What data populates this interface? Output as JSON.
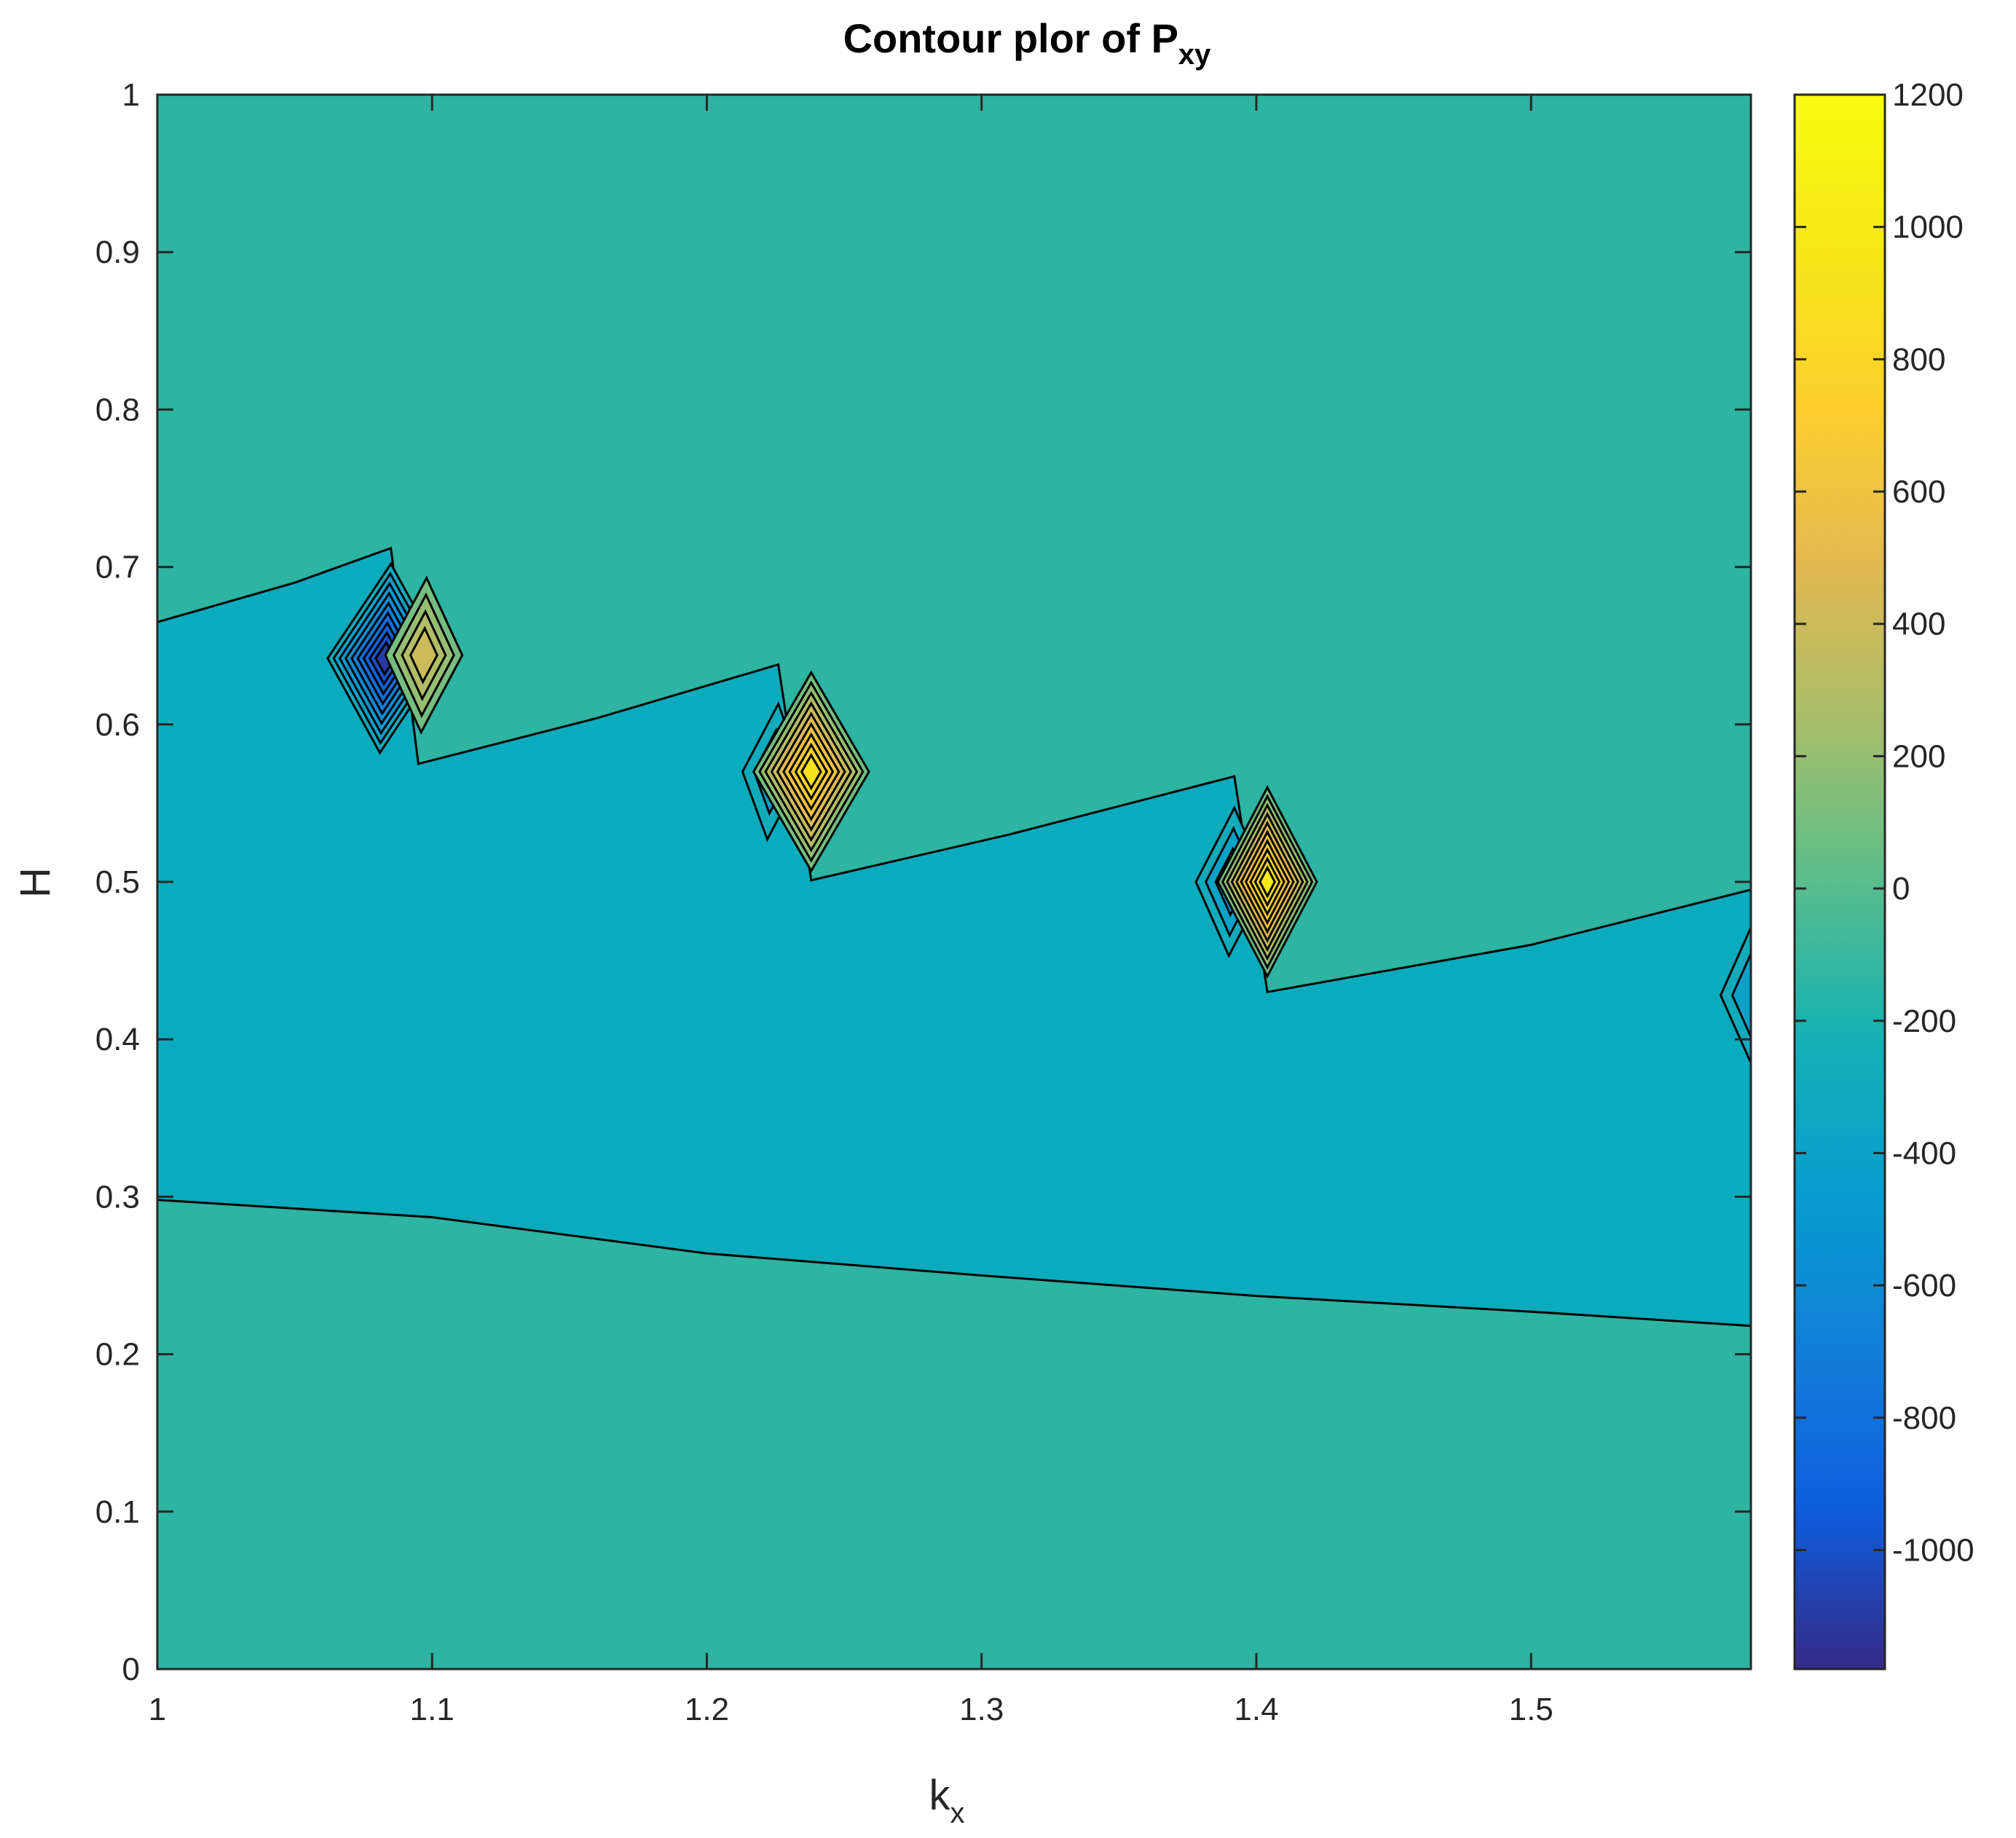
{
  "chart_data": {
    "type": "contour",
    "title": "Contour plor of P",
    "title_subscript": "xy",
    "xlabel": "k",
    "xlabel_subscript": "x",
    "ylabel": "H",
    "xlim": [
      1,
      1.58
    ],
    "ylim": [
      0,
      1
    ],
    "x_ticks": [
      1,
      1.1,
      1.2,
      1.3,
      1.4,
      1.5
    ],
    "x_tick_labels": [
      "1",
      "1.1",
      "1.2",
      "1.3",
      "1.4",
      "1.5"
    ],
    "y_ticks": [
      0,
      0.1,
      0.2,
      0.3,
      0.4,
      0.5,
      0.6,
      0.7,
      0.8,
      0.9,
      1
    ],
    "y_tick_labels": [
      "0",
      "0.1",
      "0.2",
      "0.3",
      "0.4",
      "0.5",
      "0.6",
      "0.7",
      "0.8",
      "0.9",
      "1"
    ],
    "colorbar": {
      "colormap": "parula",
      "clim": [
        -1180,
        1200
      ],
      "ticks": [
        -1000,
        -800,
        -600,
        -400,
        -200,
        0,
        200,
        400,
        600,
        800,
        1000,
        1200
      ],
      "tick_labels": [
        "-1000",
        "-800",
        "-600",
        "-400",
        "-200",
        "0",
        "200",
        "400",
        "600",
        "800",
        "1000",
        "1200"
      ]
    },
    "grid": false,
    "regions": [
      {
        "name": "background",
        "value": 0,
        "color": "#2db4a2"
      },
      {
        "name": "band",
        "value": -200,
        "color": "#0aabbd"
      }
    ],
    "band_boundary": {
      "upper": [
        [
          1.0,
          0.665
        ],
        [
          1.05,
          0.69
        ],
        [
          1.085,
          0.712
        ],
        [
          1.095,
          0.575
        ],
        [
          1.16,
          0.604
        ],
        [
          1.226,
          0.638
        ],
        [
          1.238,
          0.501
        ],
        [
          1.31,
          0.53
        ],
        [
          1.392,
          0.567
        ],
        [
          1.404,
          0.43
        ],
        [
          1.5,
          0.46
        ],
        [
          1.58,
          0.495
        ]
      ],
      "lower": [
        [
          1.0,
          0.298
        ],
        [
          1.1,
          0.287
        ],
        [
          1.2,
          0.264
        ],
        [
          1.3,
          0.25
        ],
        [
          1.4,
          0.237
        ],
        [
          1.5,
          0.227
        ],
        [
          1.58,
          0.218
        ]
      ]
    },
    "extrema": [
      {
        "kx": 1.083,
        "H": 0.642,
        "value": -1100,
        "hw": 0.021,
        "hh": 0.06,
        "skew": 0.002
      },
      {
        "kx": 1.097,
        "H": 0.644,
        "value": 400,
        "hw": 0.014,
        "hh": 0.049,
        "skew": 0.001
      },
      {
        "kx": 1.224,
        "H": 0.57,
        "value": -400,
        "hw": 0.011,
        "hh": 0.043,
        "skew": 0.002
      },
      {
        "kx": 1.238,
        "H": 0.57,
        "value": 900,
        "hw": 0.021,
        "hh": 0.063,
        "skew": 0.0
      },
      {
        "kx": 1.391,
        "H": 0.5,
        "value": -500,
        "hw": 0.013,
        "hh": 0.047,
        "skew": 0.001
      },
      {
        "kx": 1.404,
        "H": 0.5,
        "value": 1000,
        "hw": 0.018,
        "hh": 0.06,
        "skew": 0.0
      },
      {
        "kx": 1.58,
        "H": 0.428,
        "value": -400,
        "hw": 0.011,
        "hh": 0.043,
        "skew": 0.0
      }
    ]
  }
}
